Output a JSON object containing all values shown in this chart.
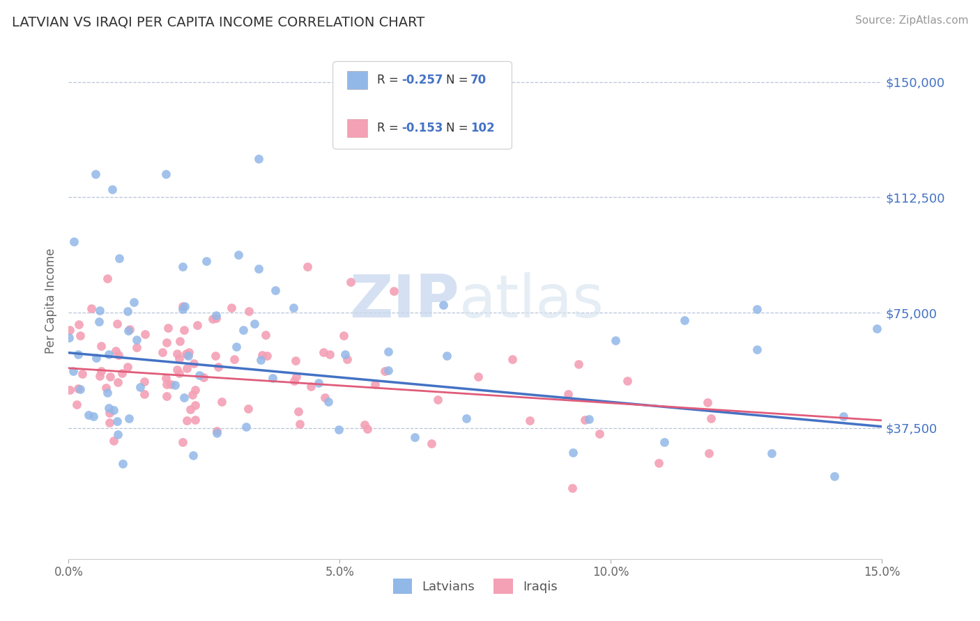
{
  "title": "LATVIAN VS IRAQI PER CAPITA INCOME CORRELATION CHART",
  "source_text": "Source: ZipAtlas.com",
  "ylabel": "Per Capita Income",
  "xlim": [
    0.0,
    0.15
  ],
  "ylim": [
    -5000,
    162500
  ],
  "yticks": [
    37500,
    75000,
    112500,
    150000
  ],
  "ytick_labels": [
    "$37,500",
    "$75,000",
    "$112,500",
    "$150,000"
  ],
  "xticks": [
    0.0,
    0.05,
    0.1,
    0.15
  ],
  "xtick_labels": [
    "0.0%",
    "5.0%",
    "10.0%",
    "15.0%"
  ],
  "latvian_color": "#92b8e8",
  "iraqi_color": "#f4a0b5",
  "latvian_line_color": "#4472c4",
  "iraqi_line_color": "#e05c7a",
  "background_color": "#ffffff",
  "grid_color": "#b8c4d8",
  "text_blue": "#4472c4",
  "text_dark": "#333333",
  "source_color": "#999999",
  "ylabel_color": "#666666",
  "xtick_color": "#666666"
}
